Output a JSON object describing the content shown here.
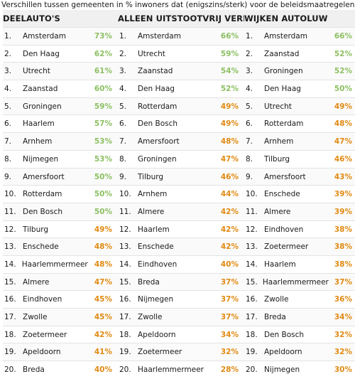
{
  "header": "Verschillen tussen gemeenten in % inwoners dat (enigszins/sterk) voor de beleidsmaatregelen is",
  "colors": {
    "green": "#8dc063",
    "orange": "#e08a12"
  },
  "columns": [
    {
      "title": "DEELAUTO'S",
      "rows": [
        {
          "rank": "1.",
          "name": "Amsterdam",
          "pct": "73%",
          "color": "green"
        },
        {
          "rank": "2.",
          "name": "Den Haag",
          "pct": "62%",
          "color": "green"
        },
        {
          "rank": "3.",
          "name": "Utrecht",
          "pct": "61%",
          "color": "green"
        },
        {
          "rank": "4.",
          "name": "Zaanstad",
          "pct": "60%",
          "color": "green"
        },
        {
          "rank": "5.",
          "name": "Groningen",
          "pct": "59%",
          "color": "green"
        },
        {
          "rank": "6.",
          "name": "Haarlem",
          "pct": "57%",
          "color": "green"
        },
        {
          "rank": "7.",
          "name": "Arnhem",
          "pct": "53%",
          "color": "green"
        },
        {
          "rank": "8.",
          "name": "Nijmegen",
          "pct": "53%",
          "color": "green"
        },
        {
          "rank": "9.",
          "name": "Amersfoort",
          "pct": "50%",
          "color": "green"
        },
        {
          "rank": "10.",
          "name": "Rotterdam",
          "pct": "50%",
          "color": "green"
        },
        {
          "rank": "11.",
          "name": "Den Bosch",
          "pct": "50%",
          "color": "green"
        },
        {
          "rank": "12.",
          "name": "Tilburg",
          "pct": "49%",
          "color": "orange"
        },
        {
          "rank": "13.",
          "name": "Enschede",
          "pct": "48%",
          "color": "orange"
        },
        {
          "rank": "14.",
          "name": "Haarlemmermeer",
          "pct": "48%",
          "color": "orange"
        },
        {
          "rank": "15.",
          "name": "Almere",
          "pct": "47%",
          "color": "orange"
        },
        {
          "rank": "16.",
          "name": "Eindhoven",
          "pct": "45%",
          "color": "orange"
        },
        {
          "rank": "17.",
          "name": "Zwolle",
          "pct": "45%",
          "color": "orange"
        },
        {
          "rank": "18.",
          "name": "Zoetermeer",
          "pct": "42%",
          "color": "orange"
        },
        {
          "rank": "19.",
          "name": "Apeldoorn",
          "pct": "41%",
          "color": "orange"
        },
        {
          "rank": "20.",
          "name": "Breda",
          "pct": "40%",
          "color": "orange"
        }
      ]
    },
    {
      "title": "ALLEEN UITSTOOTVRIJ VERKEER",
      "rows": [
        {
          "rank": "1.",
          "name": "Amsterdam",
          "pct": "66%",
          "color": "green"
        },
        {
          "rank": "2.",
          "name": "Utrecht",
          "pct": "59%",
          "color": "green"
        },
        {
          "rank": "3.",
          "name": "Zaanstad",
          "pct": "54%",
          "color": "green"
        },
        {
          "rank": "4.",
          "name": "Den Haag",
          "pct": "52%",
          "color": "green"
        },
        {
          "rank": "5.",
          "name": "Rotterdam",
          "pct": "49%",
          "color": "orange"
        },
        {
          "rank": "6.",
          "name": "Den Bosch",
          "pct": "49%",
          "color": "orange"
        },
        {
          "rank": "7.",
          "name": "Amersfoort",
          "pct": "48%",
          "color": "orange"
        },
        {
          "rank": "8.",
          "name": "Groningen",
          "pct": "47%",
          "color": "orange"
        },
        {
          "rank": "9.",
          "name": "Tilburg",
          "pct": "46%",
          "color": "orange"
        },
        {
          "rank": "10.",
          "name": "Arnhem",
          "pct": "44%",
          "color": "orange"
        },
        {
          "rank": "11.",
          "name": "Almere",
          "pct": "42%",
          "color": "orange"
        },
        {
          "rank": "12.",
          "name": "Haarlem",
          "pct": "42%",
          "color": "orange"
        },
        {
          "rank": "13.",
          "name": "Enschede",
          "pct": "42%",
          "color": "orange"
        },
        {
          "rank": "14.",
          "name": "Eindhoven",
          "pct": "40%",
          "color": "orange"
        },
        {
          "rank": "15.",
          "name": "Breda",
          "pct": "37%",
          "color": "orange"
        },
        {
          "rank": "16.",
          "name": "Nijmegen",
          "pct": "37%",
          "color": "orange"
        },
        {
          "rank": "17.",
          "name": "Zwolle",
          "pct": "37%",
          "color": "orange"
        },
        {
          "rank": "18.",
          "name": "Apeldoorn",
          "pct": "34%",
          "color": "orange"
        },
        {
          "rank": "19.",
          "name": "Zoetermeer",
          "pct": "32%",
          "color": "orange"
        },
        {
          "rank": "20.",
          "name": "Haarlemmermeer",
          "pct": "28%",
          "color": "orange"
        }
      ]
    },
    {
      "title": "WIJKEN AUTOLUW",
      "rows": [
        {
          "rank": "1.",
          "name": "Amsterdam",
          "pct": "66%",
          "color": "green"
        },
        {
          "rank": "2.",
          "name": "Zaanstad",
          "pct": "52%",
          "color": "green"
        },
        {
          "rank": "3.",
          "name": "Groningen",
          "pct": "52%",
          "color": "green"
        },
        {
          "rank": "4.",
          "name": "Den Haag",
          "pct": "50%",
          "color": "green"
        },
        {
          "rank": "5.",
          "name": "Utrecht",
          "pct": "49%",
          "color": "orange"
        },
        {
          "rank": "6.",
          "name": "Rotterdam",
          "pct": "48%",
          "color": "orange"
        },
        {
          "rank": "7.",
          "name": "Arnhem",
          "pct": "47%",
          "color": "orange"
        },
        {
          "rank": "8.",
          "name": "Tilburg",
          "pct": "46%",
          "color": "orange"
        },
        {
          "rank": "9.",
          "name": "Amersfoort",
          "pct": "43%",
          "color": "orange"
        },
        {
          "rank": "10.",
          "name": "Enschede",
          "pct": "39%",
          "color": "orange"
        },
        {
          "rank": "11.",
          "name": "Almere",
          "pct": "39%",
          "color": "orange"
        },
        {
          "rank": "12.",
          "name": "Eindhoven",
          "pct": "38%",
          "color": "orange"
        },
        {
          "rank": "13.",
          "name": "Zoetermeer",
          "pct": "38%",
          "color": "orange"
        },
        {
          "rank": "14.",
          "name": "Haarlem",
          "pct": "38%",
          "color": "orange"
        },
        {
          "rank": "15.",
          "name": "Haarlemmermeer",
          "pct": "37%",
          "color": "orange"
        },
        {
          "rank": "16.",
          "name": "Zwolle",
          "pct": "36%",
          "color": "orange"
        },
        {
          "rank": "17.",
          "name": "Breda",
          "pct": "34%",
          "color": "orange"
        },
        {
          "rank": "18.",
          "name": "Den Bosch",
          "pct": "32%",
          "color": "orange"
        },
        {
          "rank": "19.",
          "name": "Apeldoorn",
          "pct": "32%",
          "color": "orange"
        },
        {
          "rank": "20.",
          "name": "Nijmegen",
          "pct": "30%",
          "color": "orange"
        }
      ]
    }
  ]
}
